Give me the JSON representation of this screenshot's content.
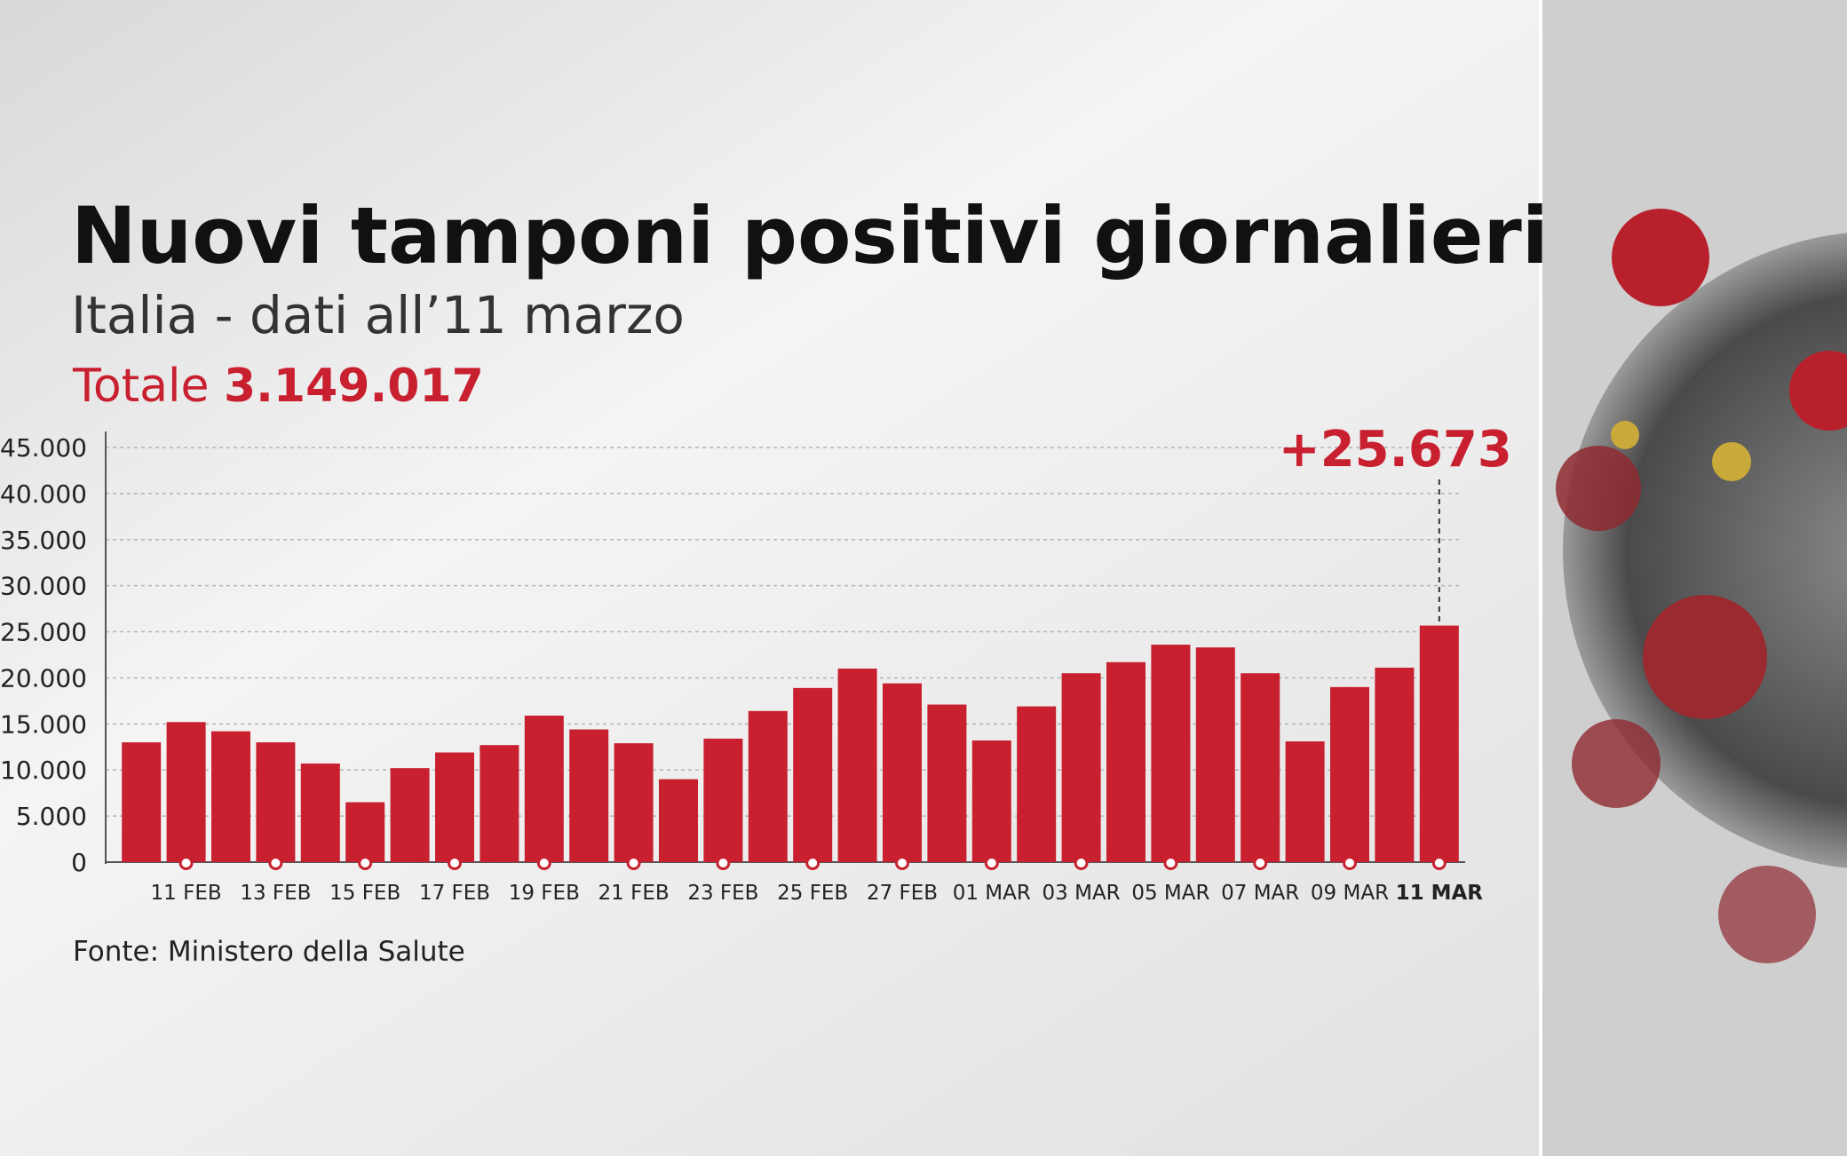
{
  "chart_data": {
    "type": "bar",
    "title": "Nuovi tamponi positivi giornalieri",
    "subtitle": "Italia - dati all’11 marzo",
    "total_label": "Totale",
    "total_value": "3.149.017",
    "source": "Fonte: Ministero della Salute",
    "categories": [
      null,
      "11 FEB",
      null,
      "13 FEB",
      null,
      "15 FEB",
      null,
      "17 FEB",
      null,
      "19 FEB",
      null,
      "21 FEB",
      null,
      "23 FEB",
      null,
      "25 FEB",
      null,
      "27 FEB",
      null,
      "01 MAR",
      null,
      "03 MAR",
      null,
      "05 MAR",
      null,
      "07 MAR",
      null,
      "09 MAR",
      null,
      "11 MAR"
    ],
    "values": [
      13000,
      15200,
      14200,
      13000,
      10700,
      6500,
      10200,
      11900,
      12700,
      15900,
      14400,
      12900,
      9000,
      13400,
      16400,
      18900,
      21000,
      19400,
      17100,
      13200,
      16900,
      20500,
      21700,
      23600,
      23300,
      20500,
      13100,
      19000,
      21100,
      25673
    ],
    "value_labels": [
      null,
      null,
      null,
      null,
      null,
      null,
      null,
      null,
      null,
      null,
      null,
      null,
      null,
      null,
      null,
      null,
      null,
      null,
      null,
      null,
      null,
      null,
      null,
      null,
      null,
      null,
      null,
      null,
      null,
      "+25.673"
    ],
    "color": "#c8202f",
    "ylim": [
      0,
      45000
    ],
    "yticks": [
      0,
      {
        "value": 5000,
        "label": "5.000"
      },
      {
        "value": 10000,
        "label": "10.000"
      },
      {
        "value": 15000,
        "label": "15.000"
      },
      {
        "value": 20000,
        "label": "20.000"
      },
      {
        "value": 25000,
        "label": "25.000"
      },
      {
        "value": 30000,
        "label": "30.000"
      },
      {
        "value": 35000,
        "label": "35.000"
      },
      {
        "value": 40000,
        "label": "40.000"
      },
      {
        "value": 45000,
        "label": "45.000"
      }
    ],
    "grid": true
  }
}
